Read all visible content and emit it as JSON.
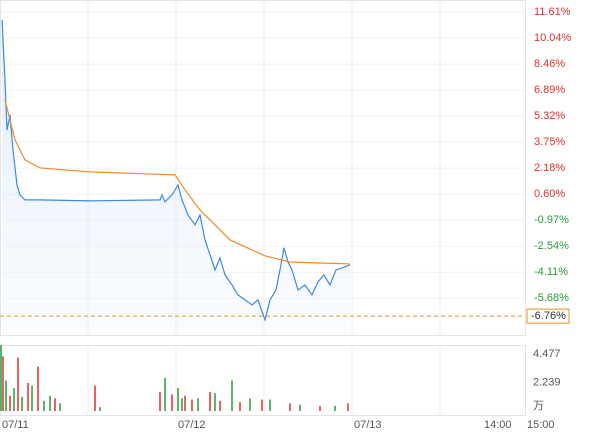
{
  "chart_data": {
    "type": "line",
    "xlim": [
      0,
      525
    ],
    "xticks": [
      {
        "value": 0,
        "label": "07/11"
      },
      {
        "value": 176,
        "label": "07/12"
      },
      {
        "value": 352,
        "label": "07/13"
      },
      {
        "value": 482,
        "label": "14:00"
      },
      {
        "value": 525,
        "label": "15:00"
      }
    ],
    "xgrid": [
      88,
      176,
      264,
      352,
      440
    ],
    "ylim": [
      -7.9,
      12.33
    ],
    "yticks": [
      {
        "value": 11.61,
        "label": "11.61%"
      },
      {
        "value": 10.04,
        "label": "10.04%"
      },
      {
        "value": 8.46,
        "label": "8.46%"
      },
      {
        "value": 6.89,
        "label": "6.89%"
      },
      {
        "value": 5.32,
        "label": "5.32%"
      },
      {
        "value": 3.75,
        "label": "3.75%"
      },
      {
        "value": 2.18,
        "label": "2.18%"
      },
      {
        "value": 0.6,
        "label": "0.60%"
      },
      {
        "value": -0.97,
        "label": "-0.97%"
      },
      {
        "value": -2.54,
        "label": "-2.54%"
      },
      {
        "value": -4.11,
        "label": "-4.11%"
      },
      {
        "value": -5.68,
        "label": "-5.68%"
      }
    ],
    "reference": {
      "value": -6.76,
      "label": "-6.76%",
      "color": "#e8901c"
    },
    "series": [
      {
        "color": "#3a8be0",
        "x": [
          2,
          5,
          7,
          10,
          13,
          17,
          20,
          25,
          40,
          90,
          160,
          162,
          165,
          172,
          178,
          182,
          188,
          195,
          200,
          205,
          210,
          215,
          220,
          225,
          232,
          238,
          245,
          252,
          258,
          265,
          270,
          276,
          280,
          284,
          288,
          292,
          298,
          305,
          312,
          318,
          324,
          330,
          336,
          342,
          350
        ],
        "values": [
          11.13,
          7.5,
          4.48,
          5.39,
          3.28,
          1.16,
          0.56,
          0.26,
          0.26,
          0.2,
          0.26,
          0.56,
          0.14,
          0.56,
          1.16,
          0.26,
          -0.65,
          -1.25,
          -0.65,
          -2.16,
          -3.06,
          -3.97,
          -3.25,
          -4.27,
          -4.88,
          -5.48,
          -5.78,
          -6.08,
          -5.78,
          -6.99,
          -5.78,
          -5.18,
          -3.97,
          -2.64,
          -3.49,
          -3.97,
          -5.18,
          -4.88,
          -5.48,
          -4.69,
          -4.27,
          -4.88,
          -3.97,
          -3.85,
          -3.67
        ]
      },
      {
        "color": "#f08a30",
        "x": [
          5,
          15,
          25,
          40,
          90,
          175,
          185,
          200,
          230,
          265,
          290,
          320,
          350
        ],
        "values": [
          6.3,
          3.88,
          2.67,
          2.19,
          1.95,
          1.77,
          0.86,
          -0.35,
          -2.16,
          -3.12,
          -3.49,
          -3.55,
          -3.61
        ]
      }
    ],
    "volume": {
      "ylim": [
        0,
        5.19
      ],
      "yticks": [
        4.477,
        2.239
      ],
      "unit": "万",
      "series": [
        {
          "color": "#e03030",
          "x": [
            3,
            10,
            18,
            28,
            38,
            55,
            95,
            160,
            172,
            185,
            192,
            210,
            220,
            240,
            262,
            290,
            320,
            348
          ],
          "values": [
            4.3,
            1.2,
            4.2,
            2.2,
            3.5,
            1.0,
            2.0,
            1.5,
            1.3,
            1.2,
            0.9,
            1.5,
            0.8,
            0.7,
            0.9,
            0.6,
            0.4,
            0.6
          ]
        },
        {
          "color": "#2a9a3a",
          "x": [
            1,
            6,
            14,
            22,
            32,
            44,
            50,
            60,
            100,
            165,
            178,
            182,
            198,
            215,
            232,
            250,
            270,
            300,
            335
          ],
          "values": [
            5.2,
            2.4,
            1.8,
            1.1,
            2.0,
            0.8,
            1.2,
            0.6,
            0.3,
            2.6,
            1.8,
            1.0,
            1.0,
            1.4,
            2.4,
            1.0,
            0.9,
            0.5,
            0.4
          ]
        }
      ]
    }
  }
}
